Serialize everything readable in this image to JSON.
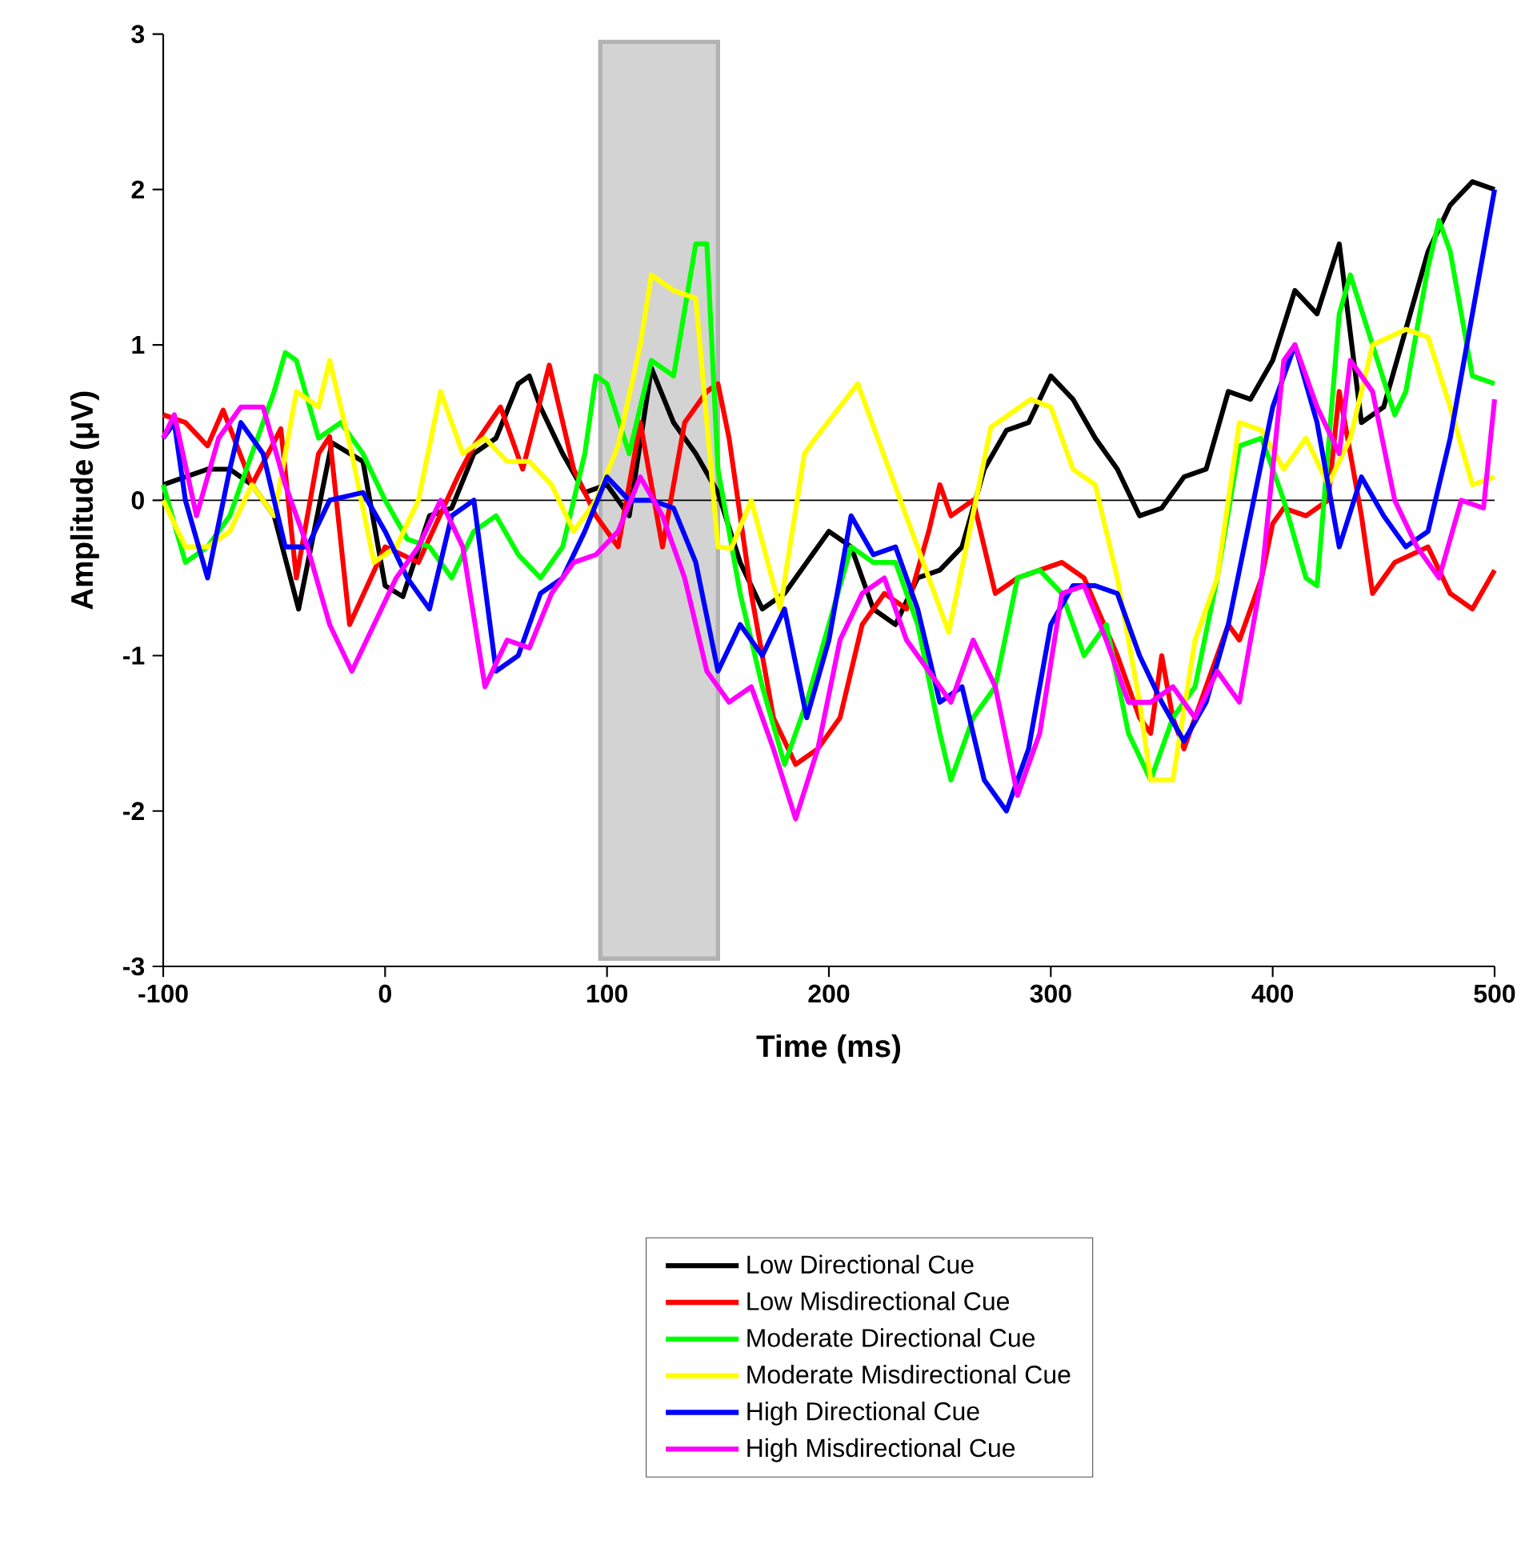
{
  "chart_data": {
    "type": "line",
    "xlabel": "Time (ms)",
    "ylabel": "Amplitude (μV)",
    "xlim": [
      -100,
      500
    ],
    "ylim": [
      -3,
      3
    ],
    "xticks": [
      -100,
      0,
      100,
      200,
      300,
      400,
      500
    ],
    "yticks": [
      -3,
      -2,
      -1,
      0,
      1,
      2,
      3
    ],
    "grid": false,
    "legend": "bottom",
    "marker": "none",
    "line_style": "solid",
    "ref_lines": [
      {
        "axis": "y",
        "value": 0,
        "color": "#000000"
      }
    ],
    "bands": [
      {
        "axis": "x",
        "from": 97,
        "to": 150,
        "color": "#d3d3d3"
      }
    ],
    "series": [
      {
        "name": "Low Directional Cue",
        "color": "#000000",
        "x": [
          -100,
          -90,
          -80,
          -70,
          -60,
          -50,
          -39,
          -24,
          -10,
          0,
          8,
          20,
          30,
          40,
          50,
          60,
          65,
          70,
          80,
          90,
          100,
          110,
          120,
          130,
          140,
          150,
          160,
          170,
          180,
          190,
          200,
          210,
          220,
          230,
          240,
          250,
          260,
          270,
          280,
          290,
          300,
          310,
          320,
          330,
          340,
          350,
          360,
          370,
          380,
          390,
          400,
          410,
          420,
          430,
          440,
          450,
          460,
          470,
          480,
          490,
          500
        ],
        "values": [
          0.1,
          0.15,
          0.2,
          0.2,
          0.1,
          -0.1,
          -0.7,
          0.37,
          0.25,
          -0.55,
          -0.62,
          -0.1,
          -0.05,
          0.3,
          0.4,
          0.75,
          0.8,
          0.6,
          0.3,
          0.05,
          0.1,
          -0.1,
          0.85,
          0.5,
          0.3,
          0.05,
          -0.4,
          -0.7,
          -0.6,
          -0.4,
          -0.2,
          -0.3,
          -0.7,
          -0.8,
          -0.5,
          -0.45,
          -0.3,
          0.2,
          0.45,
          0.5,
          0.8,
          0.65,
          0.4,
          0.2,
          -0.1,
          -0.05,
          0.15,
          0.2,
          0.7,
          0.65,
          0.9,
          1.35,
          1.2,
          1.65,
          0.5,
          0.6,
          1.1,
          1.6,
          1.9,
          2.05,
          2.0
        ]
      },
      {
        "name": "Low Misdirectional Cue",
        "color": "#ff0000",
        "x": [
          -100,
          -90,
          -80,
          -73,
          -60,
          -47,
          -40,
          -30,
          -25,
          -16,
          0,
          15,
          33,
          40,
          52,
          62,
          74,
          85,
          95,
          105,
          115,
          120,
          125,
          135,
          145,
          150,
          155,
          165,
          175,
          185,
          195,
          205,
          215,
          225,
          235,
          245,
          250,
          255,
          265,
          275,
          285,
          295,
          305,
          315,
          330,
          340,
          345,
          350,
          355,
          360,
          370,
          380,
          385,
          395,
          400,
          405,
          415,
          425,
          430,
          440,
          445,
          455,
          470,
          480,
          490,
          500
        ],
        "values": [
          0.55,
          0.5,
          0.35,
          0.58,
          0.1,
          0.46,
          -0.5,
          0.3,
          0.41,
          -0.8,
          -0.3,
          -0.4,
          0.16,
          0.35,
          0.6,
          0.2,
          0.87,
          0.2,
          -0.1,
          -0.3,
          0.5,
          0.1,
          -0.3,
          0.5,
          0.7,
          0.75,
          0.4,
          -0.6,
          -1.4,
          -1.7,
          -1.6,
          -1.4,
          -0.8,
          -0.6,
          -0.7,
          -0.2,
          0.1,
          -0.1,
          0.0,
          -0.6,
          -0.5,
          -0.45,
          -0.4,
          -0.5,
          -1.0,
          -1.4,
          -1.5,
          -1.0,
          -1.4,
          -1.6,
          -1.2,
          -0.8,
          -0.9,
          -0.5,
          -0.15,
          -0.05,
          -0.1,
          0.0,
          0.7,
          -0.1,
          -0.6,
          -0.4,
          -0.3,
          -0.6,
          -0.7,
          -0.45
        ]
      },
      {
        "name": "Moderate Directional Cue",
        "color": "#00ff00",
        "x": [
          -100,
          -90,
          -80,
          -70,
          -60,
          -50,
          -45,
          -40,
          -30,
          -20,
          -10,
          0,
          10,
          20,
          30,
          40,
          50,
          60,
          70,
          80,
          90,
          95,
          100,
          110,
          120,
          130,
          140,
          145,
          150,
          160,
          170,
          180,
          190,
          200,
          210,
          220,
          230,
          240,
          250,
          255,
          265,
          275,
          285,
          295,
          305,
          315,
          325,
          335,
          345,
          355,
          365,
          375,
          385,
          395,
          405,
          415,
          420,
          430,
          435,
          445,
          455,
          460,
          470,
          475,
          480,
          490,
          500
        ],
        "values": [
          0.1,
          -0.4,
          -0.3,
          -0.1,
          0.3,
          0.7,
          0.95,
          0.9,
          0.4,
          0.5,
          0.3,
          0.0,
          -0.25,
          -0.3,
          -0.5,
          -0.2,
          -0.1,
          -0.35,
          -0.5,
          -0.3,
          0.3,
          0.8,
          0.75,
          0.3,
          0.9,
          0.8,
          1.65,
          1.65,
          0.2,
          -0.6,
          -1.2,
          -1.7,
          -1.3,
          -0.8,
          -0.3,
          -0.4,
          -0.4,
          -0.8,
          -1.5,
          -1.8,
          -1.4,
          -1.2,
          -0.5,
          -0.45,
          -0.6,
          -1.0,
          -0.8,
          -1.5,
          -1.8,
          -1.4,
          -1.2,
          -0.5,
          0.35,
          0.4,
          0.0,
          -0.5,
          -0.55,
          1.2,
          1.45,
          1.0,
          0.55,
          0.7,
          1.5,
          1.8,
          1.6,
          0.8,
          0.75
        ]
      },
      {
        "name": "Moderate Misdirectional Cue",
        "color": "#ffff00",
        "x": [
          -100,
          -90,
          -80,
          -70,
          -60,
          -50,
          -40,
          -30,
          -25,
          -15,
          -5,
          5,
          15,
          25,
          35,
          45,
          55,
          65,
          75,
          85,
          95,
          105,
          115,
          120,
          130,
          140,
          150,
          156,
          165,
          178,
          189,
          194,
          213,
          254,
          273,
          291,
          300,
          310,
          320,
          330,
          340,
          345,
          355,
          365,
          375,
          385,
          395,
          405,
          415,
          425,
          435,
          445,
          460,
          470,
          480,
          490,
          500
        ],
        "values": [
          0.0,
          -0.3,
          -0.3,
          -0.2,
          0.1,
          -0.1,
          0.7,
          0.6,
          0.9,
          0.3,
          -0.4,
          -0.3,
          0.0,
          0.7,
          0.3,
          0.4,
          0.25,
          0.25,
          0.1,
          -0.2,
          0.0,
          0.35,
          1.0,
          1.45,
          1.35,
          1.3,
          -0.3,
          -0.31,
          0.0,
          -0.7,
          0.3,
          0.4,
          0.75,
          -0.85,
          0.47,
          0.65,
          0.6,
          0.2,
          0.1,
          -0.5,
          -1.3,
          -1.8,
          -1.8,
          -0.9,
          -0.5,
          0.5,
          0.45,
          0.2,
          0.4,
          0.1,
          0.4,
          1.0,
          1.1,
          1.05,
          0.6,
          0.1,
          0.15
        ]
      },
      {
        "name": "High Directional Cue",
        "color": "#0000ff",
        "x": [
          -100,
          -95,
          -90,
          -80,
          -70,
          -65,
          -55,
          -45,
          -35,
          -25,
          -10,
          0,
          10,
          20,
          30,
          40,
          50,
          60,
          70,
          80,
          90,
          100,
          110,
          120,
          130,
          140,
          150,
          160,
          170,
          180,
          190,
          200,
          210,
          220,
          230,
          240,
          250,
          260,
          270,
          280,
          290,
          300,
          310,
          320,
          330,
          340,
          350,
          360,
          370,
          380,
          390,
          400,
          410,
          420,
          430,
          440,
          450,
          460,
          470,
          480,
          490,
          500
        ],
        "values": [
          0.4,
          0.5,
          0.0,
          -0.5,
          0.2,
          0.5,
          0.3,
          -0.3,
          -0.3,
          0.0,
          0.05,
          -0.2,
          -0.5,
          -0.7,
          -0.1,
          0.0,
          -1.1,
          -1.0,
          -0.6,
          -0.5,
          -0.2,
          0.15,
          0.0,
          0.0,
          -0.05,
          -0.4,
          -1.1,
          -0.8,
          -1.0,
          -0.7,
          -1.4,
          -0.9,
          -0.1,
          -0.35,
          -0.3,
          -0.7,
          -1.3,
          -1.2,
          -1.8,
          -2.0,
          -1.6,
          -0.8,
          -0.55,
          -0.55,
          -0.6,
          -1.0,
          -1.3,
          -1.55,
          -1.3,
          -0.8,
          -0.1,
          0.6,
          1.0,
          0.5,
          -0.3,
          0.15,
          -0.1,
          -0.3,
          -0.2,
          0.4,
          1.2,
          2.0
        ]
      },
      {
        "name": "High Misdirectional Cue",
        "color": "#ff00ff",
        "x": [
          -100,
          -95,
          -85,
          -75,
          -65,
          -55,
          -45,
          -35,
          -25,
          -15,
          -5,
          5,
          15,
          25,
          35,
          45,
          55,
          65,
          75,
          85,
          95,
          105,
          115,
          125,
          135,
          145,
          155,
          165,
          175,
          185,
          195,
          205,
          215,
          225,
          235,
          245,
          255,
          265,
          275,
          285,
          295,
          305,
          315,
          325,
          335,
          345,
          355,
          365,
          375,
          385,
          395,
          405,
          410,
          420,
          430,
          435,
          445,
          455,
          465,
          475,
          485,
          495,
          500
        ],
        "values": [
          0.4,
          0.55,
          -0.1,
          0.4,
          0.6,
          0.6,
          0.1,
          -0.3,
          -0.8,
          -1.1,
          -0.8,
          -0.5,
          -0.3,
          0.0,
          -0.3,
          -1.2,
          -0.9,
          -0.95,
          -0.6,
          -0.4,
          -0.35,
          -0.2,
          0.15,
          -0.1,
          -0.5,
          -1.1,
          -1.3,
          -1.2,
          -1.6,
          -2.05,
          -1.6,
          -0.9,
          -0.6,
          -0.5,
          -0.9,
          -1.1,
          -1.3,
          -0.9,
          -1.2,
          -1.9,
          -1.5,
          -0.6,
          -0.55,
          -0.9,
          -1.3,
          -1.3,
          -1.2,
          -1.4,
          -1.1,
          -1.3,
          -0.5,
          0.9,
          1.0,
          0.6,
          0.3,
          0.9,
          0.7,
          0.0,
          -0.3,
          -0.5,
          0.0,
          -0.05,
          0.65
        ]
      }
    ]
  }
}
